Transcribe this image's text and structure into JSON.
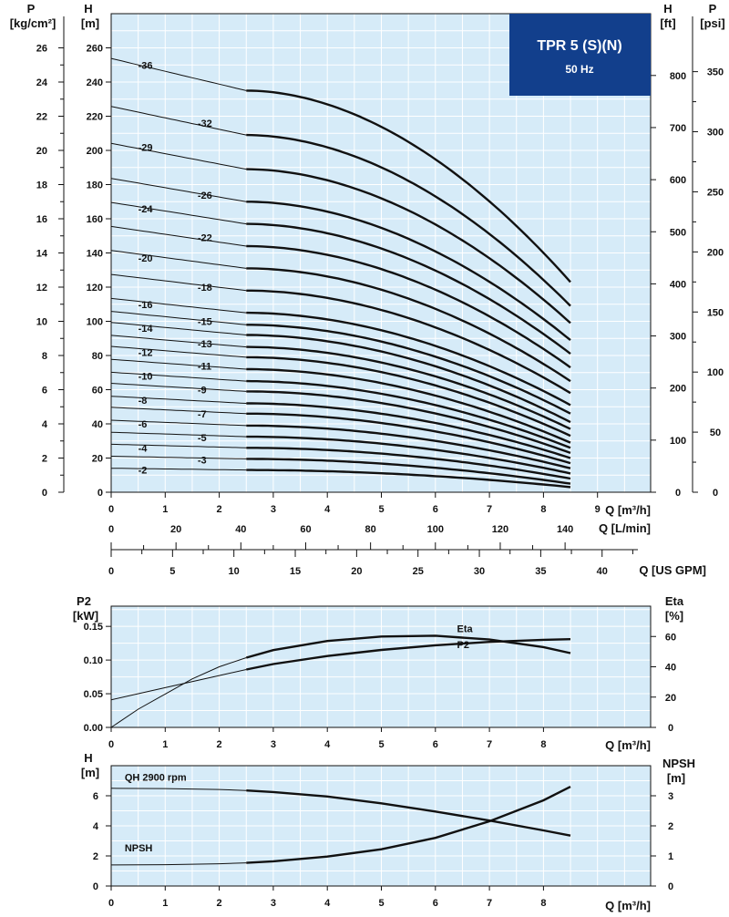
{
  "badge": {
    "title": "TPR 5 (S)(N)",
    "subtitle": "50 Hz"
  },
  "axes": {
    "p_kgcm2": {
      "name": "P",
      "unit": "[kg/cm²]",
      "ticks": [
        0,
        2,
        4,
        6,
        8,
        10,
        12,
        14,
        16,
        18,
        20,
        22,
        24,
        26
      ]
    },
    "h_m": {
      "name": "H",
      "unit": "[m]",
      "ticks": [
        0,
        20,
        40,
        60,
        80,
        100,
        120,
        140,
        160,
        180,
        200,
        220,
        240,
        260
      ]
    },
    "h_ft": {
      "name": "H",
      "unit": "[ft]",
      "ticks": [
        0,
        100,
        200,
        300,
        400,
        500,
        600,
        700,
        800
      ]
    },
    "p_psi": {
      "name": "P",
      "unit": "[psi]",
      "ticks": [
        0,
        50,
        100,
        150,
        200,
        250,
        300,
        350
      ]
    },
    "q_m3h": {
      "label": "Q [m³/h]",
      "ticks": [
        0,
        1,
        2,
        3,
        4,
        5,
        6,
        7,
        8,
        9
      ]
    },
    "q_lmin": {
      "label": "Q [L/min]",
      "ticks": [
        0,
        20,
        40,
        60,
        80,
        100,
        120,
        140
      ]
    },
    "q_usgpm": {
      "label": "Q [US GPM]",
      "ticks": [
        0,
        5,
        10,
        15,
        20,
        25,
        30,
        35,
        40
      ]
    },
    "p2_kw": {
      "name": "P2",
      "unit": "[kW]",
      "ticks": [
        "0.00",
        "0.05",
        "0.10",
        "0.15"
      ]
    },
    "eta_pct": {
      "name": "Eta",
      "unit": "[%]",
      "ticks": [
        0,
        20,
        40,
        60
      ]
    },
    "h_m_small": {
      "name": "H",
      "unit": "[m]",
      "ticks": [
        0,
        2,
        4,
        6
      ]
    },
    "npsh_m": {
      "name": "NPSH",
      "unit": "[m]",
      "ticks": [
        0,
        1,
        2,
        3
      ]
    }
  },
  "chart_data": [
    {
      "type": "line",
      "xlabel": "Q [m³/h]",
      "ylabel": "H [m]",
      "xlim": [
        0,
        10
      ],
      "ylim": [
        0,
        280
      ],
      "grid": true,
      "series": [
        {
          "name": "2",
          "h0": 13,
          "h_end": 3,
          "label_x": 0.5,
          "label_y": 13
        },
        {
          "name": "3",
          "h0": 19.5,
          "h_end": 5,
          "label_x": 1.6,
          "label_y": 19
        },
        {
          "name": "4",
          "h0": 26,
          "h_end": 8,
          "label_x": 0.5,
          "label_y": 26
        },
        {
          "name": "5",
          "h0": 32.5,
          "h_end": 11,
          "label_x": 1.6,
          "label_y": 32
        },
        {
          "name": "6",
          "h0": 39,
          "h_end": 14,
          "label_x": 0.5,
          "label_y": 40
        },
        {
          "name": "7",
          "h0": 46,
          "h_end": 17,
          "label_x": 1.6,
          "label_y": 46
        },
        {
          "name": "8",
          "h0": 52,
          "h_end": 20,
          "label_x": 0.5,
          "label_y": 54
        },
        {
          "name": "9",
          "h0": 59,
          "h_end": 23,
          "label_x": 1.6,
          "label_y": 60
        },
        {
          "name": "10",
          "h0": 65,
          "h_end": 26,
          "label_x": 0.5,
          "label_y": 68
        },
        {
          "name": "11",
          "h0": 72,
          "h_end": 29,
          "label_x": 1.6,
          "label_y": 74
        },
        {
          "name": "12",
          "h0": 79,
          "h_end": 33,
          "label_x": 0.5,
          "label_y": 82
        },
        {
          "name": "13",
          "h0": 85,
          "h_end": 37,
          "label_x": 1.6,
          "label_y": 87
        },
        {
          "name": "14",
          "h0": 92,
          "h_end": 41,
          "label_x": 0.5,
          "label_y": 96
        },
        {
          "name": "15",
          "h0": 98,
          "h_end": 46,
          "label_x": 1.6,
          "label_y": 100
        },
        {
          "name": "16",
          "h0": 105,
          "h_end": 51,
          "label_x": 0.5,
          "label_y": 110
        },
        {
          "name": "18",
          "h0": 118,
          "h_end": 58,
          "label_x": 1.6,
          "label_y": 120
        },
        {
          "name": "20",
          "h0": 131,
          "h_end": 65,
          "label_x": 0.5,
          "label_y": 137
        },
        {
          "name": "22",
          "h0": 144,
          "h_end": 73,
          "label_x": 1.6,
          "label_y": 149
        },
        {
          "name": "24",
          "h0": 157,
          "h_end": 81,
          "label_x": 0.5,
          "label_y": 166
        },
        {
          "name": "26",
          "h0": 170,
          "h_end": 89,
          "label_x": 1.6,
          "label_y": 174
        },
        {
          "name": "29",
          "h0": 189,
          "h_end": 99,
          "label_x": 0.5,
          "label_y": 202
        },
        {
          "name": "32",
          "h0": 209,
          "h_end": 109,
          "label_x": 1.6,
          "label_y": 216
        },
        {
          "name": "36",
          "h0": 235,
          "h_end": 123,
          "label_x": 0.5,
          "label_y": 250
        }
      ],
      "series_shape": {
        "q_start": 0,
        "q_bold_from": 2.5,
        "q_end": 8.5,
        "h_at_zero_ratio": 1.08
      }
    },
    {
      "type": "line",
      "xlabel": "Q [m³/h]",
      "ylabel": "P2 [kW]",
      "xlim": [
        0,
        10
      ],
      "ylim": [
        0,
        0.18
      ],
      "grid": true,
      "series": [
        {
          "name": "P2",
          "x": [
            0,
            1,
            2,
            2.5,
            3,
            4,
            5,
            6,
            7,
            8,
            8.5
          ],
          "y": [
            0.041,
            0.059,
            0.077,
            0.086,
            0.094,
            0.106,
            0.115,
            0.122,
            0.127,
            0.13,
            0.131
          ]
        },
        {
          "name": "Eta",
          "axis": "right",
          "x": [
            0,
            0.5,
            1,
            1.5,
            2,
            2.5,
            3,
            4,
            5,
            6,
            7,
            8,
            8.5
          ],
          "y": [
            0,
            12,
            22,
            32,
            40,
            46,
            51,
            57,
            60,
            60.5,
            58,
            53,
            49
          ]
        }
      ]
    },
    {
      "type": "line",
      "xlabel": "Q [m³/h]",
      "ylabel": "H [m]",
      "xlim": [
        0,
        10
      ],
      "ylim": [
        0,
        8
      ],
      "grid": true,
      "series": [
        {
          "name": "QH 2900 rpm",
          "x": [
            0,
            1,
            2,
            2.5,
            3,
            4,
            5,
            6,
            7,
            8,
            8.5
          ],
          "y": [
            6.5,
            6.48,
            6.42,
            6.35,
            6.25,
            5.95,
            5.5,
            4.95,
            4.35,
            3.7,
            3.35
          ]
        },
        {
          "name": "NPSH",
          "axis": "right",
          "x": [
            0,
            1,
            2,
            2.5,
            3,
            4,
            5,
            6,
            7,
            8,
            8.5
          ],
          "y": [
            0.7,
            0.71,
            0.74,
            0.77,
            0.82,
            0.98,
            1.22,
            1.6,
            2.15,
            2.85,
            3.3
          ]
        }
      ]
    }
  ]
}
